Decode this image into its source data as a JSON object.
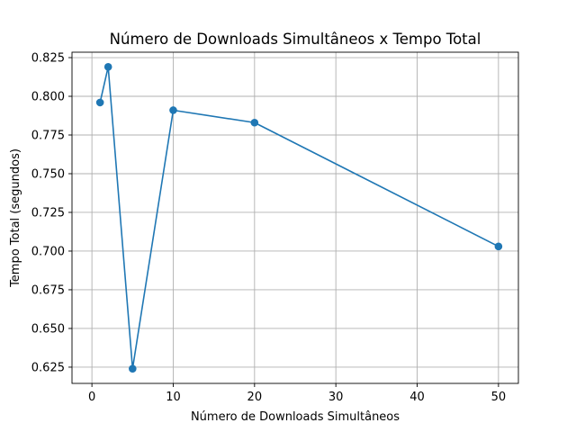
{
  "chart_data": {
    "type": "line",
    "title": "Número de Downloads Simultâneos x Tempo Total",
    "xlabel": "Número de Downloads Simultâneos",
    "ylabel": "Tempo Total (segundos)",
    "xlim": [
      -2.45,
      52.45
    ],
    "ylim": [
      0.6145,
      0.8285
    ],
    "x_ticks": [
      0,
      10,
      20,
      30,
      40,
      50
    ],
    "y_ticks": [
      0.625,
      0.65,
      0.675,
      0.7,
      0.725,
      0.75,
      0.775,
      0.8,
      0.825
    ],
    "x_tick_labels": [
      "0",
      "10",
      "20",
      "30",
      "40",
      "50"
    ],
    "y_tick_labels": [
      "0.625",
      "0.650",
      "0.675",
      "0.700",
      "0.725",
      "0.750",
      "0.775",
      "0.800",
      "0.825"
    ],
    "grid": true,
    "marker": "circle",
    "series": [
      {
        "color": "#1f77b4",
        "x": [
          1,
          2,
          5,
          10,
          20,
          50
        ],
        "y": [
          0.796,
          0.819,
          0.624,
          0.791,
          0.783,
          0.703
        ]
      }
    ]
  }
}
